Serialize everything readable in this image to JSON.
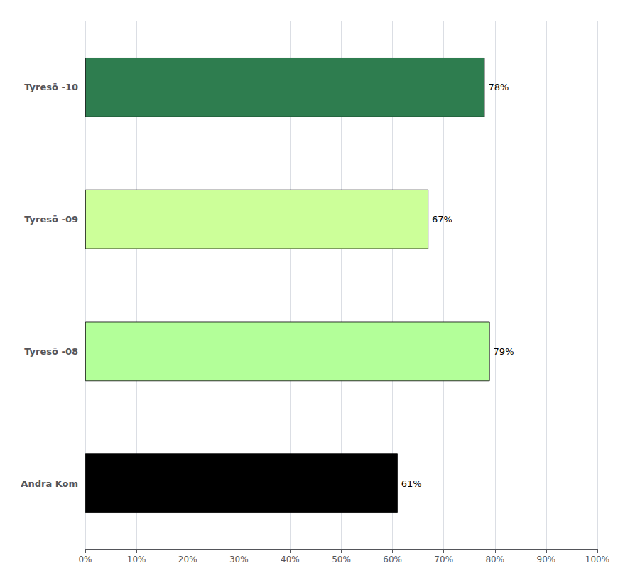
{
  "chart_data": {
    "type": "bar",
    "orientation": "horizontal",
    "categories": [
      "Andra Kom",
      "Tyresö -08",
      "Tyresö -09",
      "Tyresö -10"
    ],
    "values": [
      61,
      79,
      67,
      78
    ],
    "value_labels": [
      "61%",
      "79%",
      "67%",
      "78%"
    ],
    "colors": [
      "#000000",
      "#b3ff99",
      "#ccff99",
      "#2e7d4f"
    ],
    "data_labels": true,
    "xlim": [
      0,
      100
    ],
    "xticks": [
      {
        "value": 0,
        "label": "0%"
      },
      {
        "value": 10,
        "label": "10%"
      },
      {
        "value": 20,
        "label": "20%"
      },
      {
        "value": 30,
        "label": "30%"
      },
      {
        "value": 40,
        "label": "40%"
      },
      {
        "value": 50,
        "label": "50%"
      },
      {
        "value": 60,
        "label": "60%"
      },
      {
        "value": 70,
        "label": "70%"
      },
      {
        "value": 80,
        "label": "80%"
      },
      {
        "value": 90,
        "label": "90%"
      },
      {
        "value": 100,
        "label": "100%"
      }
    ],
    "grid": true
  }
}
